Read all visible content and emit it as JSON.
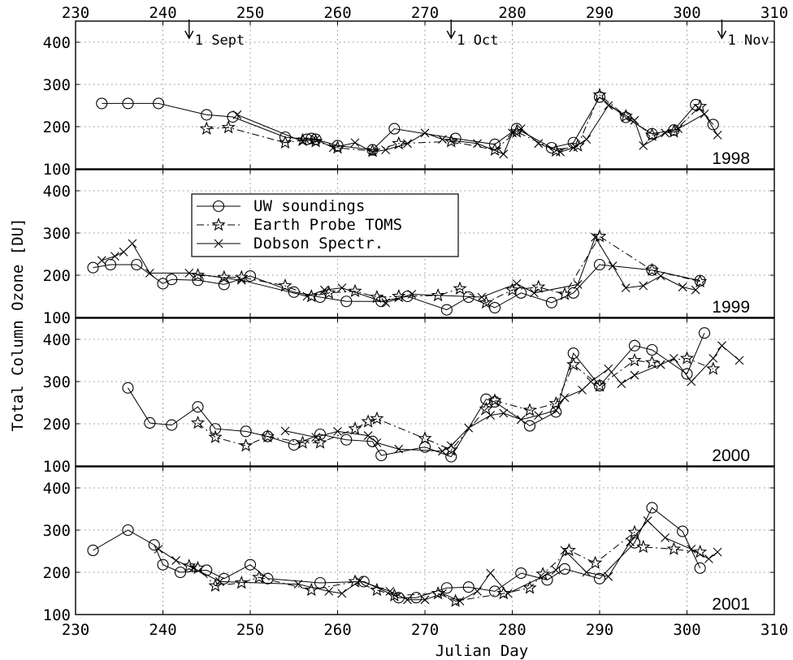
{
  "chart_data": {
    "type": "line",
    "xlabel": "Julian Day",
    "ylabel": "Total Column Ozone [DU]",
    "xlim": [
      230,
      310
    ],
    "x_ticks": [
      230,
      240,
      250,
      260,
      270,
      280,
      290,
      300,
      310
    ],
    "ylim": [
      100,
      450
    ],
    "y_ticks": [
      100,
      200,
      300,
      400
    ],
    "grid": true,
    "legend": {
      "placement": "inside second panel, upper-left",
      "entries": [
        {
          "name": "UW soundings",
          "marker": "circle",
          "line": "solid"
        },
        {
          "name": "Earth Probe TOMS",
          "marker": "star",
          "line": "dash-dot"
        },
        {
          "name": "Dobson Spectr.",
          "marker": "x",
          "line": "solid"
        }
      ]
    },
    "annotations": [
      {
        "text": "1 Sept",
        "x": 243
      },
      {
        "text": "1 Oct",
        "x": 273
      },
      {
        "text": "1 Nov",
        "x": 304
      }
    ],
    "panels": [
      {
        "label": "1998",
        "series": [
          {
            "name": "UW soundings",
            "x": [
              233,
              236,
              239.5,
              245,
              248,
              254,
              256.5,
              257,
              257.5,
              260,
              264,
              266.5,
              273.5,
              278,
              280.5,
              284.5,
              287,
              290,
              293,
              296,
              298.5,
              301,
              303
            ],
            "y": [
              255,
              255,
              255,
              228,
              223,
              175,
              170,
              172,
              170,
              155,
              145,
              195,
              172,
              158,
              195,
              150,
              162,
              270,
              222,
              183,
              192,
              252,
              205
            ]
          },
          {
            "name": "Earth Probe TOMS",
            "x": [
              245,
              247.5,
              254,
              256,
              257.5,
              260,
              264,
              267,
              273,
              278,
              280.5,
              285,
              287.5,
              290,
              293,
              296,
              298.5,
              301.5
            ],
            "y": [
              195,
              198,
              162,
              168,
              165,
              150,
              142,
              160,
              165,
              145,
              188,
              143,
              155,
              275,
              225,
              180,
              188,
              248
            ]
          },
          {
            "name": "Dobson Spectr.",
            "x": [
              248.5,
              256,
              257.5,
              259.5,
              262,
              264,
              265.5,
              268,
              270,
              272,
              276,
              279,
              280,
              281,
              283,
              285.5,
              287,
              288.5,
              291,
              294,
              295,
              297.5,
              299,
              302,
              303.5
            ],
            "y": [
              228,
              165,
              170,
              150,
              162,
              140,
              145,
              160,
              185,
              170,
              160,
              135,
              185,
              195,
              160,
              140,
              150,
              170,
              250,
              215,
              155,
              185,
              195,
              230,
              180
            ]
          }
        ]
      },
      {
        "label": "1999",
        "series": [
          {
            "name": "UW soundings",
            "x": [
              232,
              234,
              237,
              240,
              241,
              244,
              247,
              250,
              255,
              258,
              261,
              265,
              268,
              272.5,
              275,
              278,
              281,
              284.5,
              287,
              290,
              296,
              301.5
            ],
            "y": [
              218,
              225,
              225,
              180,
              190,
              188,
              178,
              198,
              160,
              148,
              138,
              138,
              150,
              118,
              148,
              123,
              158,
              135,
              158,
              225,
              212,
              187
            ]
          },
          {
            "name": "Earth Probe TOMS",
            "x": [
              244,
              247,
              249,
              254,
              257,
              259,
              262,
              264.5,
              267,
              271.5,
              274,
              277,
              280,
              283,
              286,
              290,
              296,
              301.5
            ],
            "y": [
              200,
              195,
              195,
              175,
              150,
              158,
              162,
              148,
              150,
              152,
              168,
              135,
              165,
              172,
              155,
              292,
              212,
              185
            ]
          },
          {
            "name": "Dobson Spectr.",
            "x": [
              233,
              234.5,
              235.5,
              236.5,
              238.5,
              243,
              249,
              256.5,
              258.5,
              260.5,
              265.5,
              268.5,
              276.5,
              280.5,
              282.5,
              287.5,
              289.5,
              291.5,
              293,
              295,
              297,
              299.5,
              301
            ],
            "y": [
              235,
              245,
              255,
              275,
              205,
              205,
              188,
              150,
              165,
              170,
              135,
              155,
              148,
              180,
              158,
              178,
              290,
              222,
              170,
              175,
              198,
              172,
              165
            ]
          }
        ]
      },
      {
        "label": "2000",
        "series": [
          {
            "name": "UW soundings",
            "x": [
              236,
              238.5,
              241,
              244,
              246,
              249.5,
              252,
              255,
              258,
              261,
              264,
              265,
              270,
              273,
              277,
              278,
              282,
              285,
              287,
              290,
              294,
              296,
              300,
              302
            ],
            "y": [
              285,
              202,
              197,
              240,
              188,
              182,
              170,
              150,
              175,
              162,
              158,
              125,
              145,
              122,
              258,
              252,
              195,
              228,
              367,
              290,
              385,
              375,
              318,
              415
            ]
          },
          {
            "name": "Earth Probe TOMS",
            "x": [
              244,
              246,
              249.5,
              252,
              256,
              258,
              262,
              263.5,
              264.5,
              270,
              273,
              277,
              278,
              282,
              285,
              287,
              290,
              294,
              296,
              300,
              303
            ],
            "y": [
              202,
              168,
              148,
              170,
              155,
              155,
              188,
              205,
              212,
              165,
              138,
              235,
              255,
              232,
              248,
              340,
              290,
              350,
              345,
              355,
              330
            ]
          },
          {
            "name": "Dobson Spectr.",
            "x": [
              254,
              257.5,
              260,
              263.5,
              264.5,
              267,
              272,
              273,
              275,
              277.5,
              279,
              281,
              283,
              285,
              286,
              288,
              289,
              291,
              292.5,
              294,
              297,
              298.5,
              300.5,
              303,
              304,
              306
            ],
            "y": [
              183,
              168,
              182,
              172,
              155,
              140,
              135,
              148,
              190,
              220,
              225,
              210,
              220,
              232,
              262,
              280,
              300,
              330,
              295,
              315,
              340,
              355,
              300,
              355,
              385,
              350
            ]
          }
        ]
      },
      {
        "label": "2001",
        "series": [
          {
            "name": "UW soundings",
            "x": [
              232,
              236,
              239,
              240,
              242,
              245,
              247,
              250,
              252,
              258,
              263,
              267,
              269,
              272.5,
              275,
              278,
              281,
              284,
              286,
              290,
              294,
              296,
              299.5,
              301.5
            ],
            "y": [
              252,
              300,
              265,
              218,
              200,
              205,
              185,
              218,
              185,
              175,
              178,
              140,
              140,
              163,
              165,
              155,
              198,
              182,
              208,
              185,
              270,
              353,
              297,
              210
            ]
          },
          {
            "name": "Earth Probe TOMS",
            "x": [
              243,
              244,
              246,
              249,
              251,
              257,
              262,
              264.5,
              266.5,
              271.5,
              273.5,
              279,
              282,
              283.5,
              286.5,
              289.5,
              294,
              295,
              298.5,
              301.5
            ],
            "y": [
              215,
              210,
              168,
              175,
              188,
              158,
              178,
              158,
              145,
              150,
              132,
              150,
              163,
              196,
              252,
              222,
              295,
              260,
              255,
              248
            ]
          },
          {
            "name": "Dobson Spectr.",
            "x": [
              239.5,
              241.5,
              243.5,
              246.5,
              255.5,
              259,
              260.5,
              262.5,
              266,
              268,
              270,
              272,
              274,
              276,
              277.5,
              279.5,
              285,
              286,
              288.5,
              291,
              293.5,
              295.5,
              297.5,
              300.5,
              302.5,
              303.5
            ],
            "y": [
              255,
              228,
              210,
              178,
              172,
              155,
              150,
              180,
              155,
              135,
              135,
              150,
              132,
              155,
              198,
              150,
              205,
              252,
              200,
              190,
              272,
              322,
              282,
              255,
              232,
              248
            ]
          }
        ]
      }
    ]
  }
}
